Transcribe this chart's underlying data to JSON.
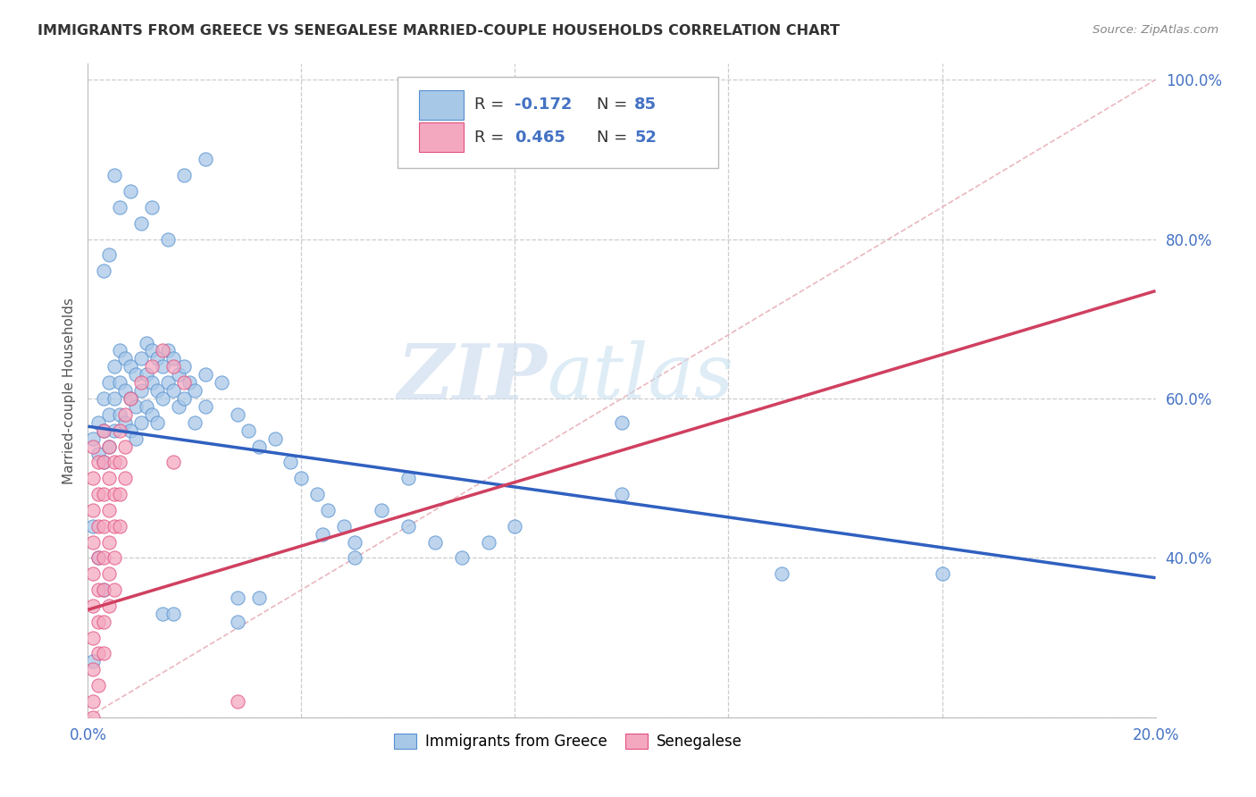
{
  "title": "IMMIGRANTS FROM GREECE VS SENEGALESE MARRIED-COUPLE HOUSEHOLDS CORRELATION CHART",
  "source": "Source: ZipAtlas.com",
  "xlabel_label": "Immigrants from Greece",
  "xlabel_label2": "Senegalese",
  "ylabel": "Married-couple Households",
  "xlim": [
    0.0,
    0.2
  ],
  "ylim": [
    0.2,
    1.02
  ],
  "xticks": [
    0.0,
    0.04,
    0.08,
    0.12,
    0.16,
    0.2
  ],
  "yticks": [
    0.2,
    0.4,
    0.6,
    0.8,
    1.0
  ],
  "color_blue": "#A8C8E8",
  "color_pink": "#F4A8C0",
  "color_blue_edge": "#5590D0",
  "color_pink_edge": "#E05080",
  "color_blue_line": "#3060C0",
  "color_pink_line": "#D04060",
  "color_diag_line": "#E8B0B8",
  "watermark_zip": "ZIP",
  "watermark_atlas": "atlas",
  "background_color": "#FFFFFF",
  "grid_color": "#CCCCCC",
  "title_color": "#333333",
  "axis_label_color": "#4472C4",
  "blue_scatter": [
    [
      0.001,
      0.55
    ],
    [
      0.002,
      0.57
    ],
    [
      0.002,
      0.53
    ],
    [
      0.003,
      0.6
    ],
    [
      0.003,
      0.56
    ],
    [
      0.003,
      0.52
    ],
    [
      0.004,
      0.62
    ],
    [
      0.004,
      0.58
    ],
    [
      0.004,
      0.54
    ],
    [
      0.005,
      0.64
    ],
    [
      0.005,
      0.6
    ],
    [
      0.005,
      0.56
    ],
    [
      0.006,
      0.66
    ],
    [
      0.006,
      0.62
    ],
    [
      0.006,
      0.58
    ],
    [
      0.007,
      0.65
    ],
    [
      0.007,
      0.61
    ],
    [
      0.007,
      0.57
    ],
    [
      0.008,
      0.64
    ],
    [
      0.008,
      0.6
    ],
    [
      0.008,
      0.56
    ],
    [
      0.009,
      0.63
    ],
    [
      0.009,
      0.59
    ],
    [
      0.009,
      0.55
    ],
    [
      0.01,
      0.65
    ],
    [
      0.01,
      0.61
    ],
    [
      0.01,
      0.57
    ],
    [
      0.011,
      0.67
    ],
    [
      0.011,
      0.63
    ],
    [
      0.011,
      0.59
    ],
    [
      0.012,
      0.66
    ],
    [
      0.012,
      0.62
    ],
    [
      0.012,
      0.58
    ],
    [
      0.013,
      0.65
    ],
    [
      0.013,
      0.61
    ],
    [
      0.013,
      0.57
    ],
    [
      0.014,
      0.64
    ],
    [
      0.014,
      0.6
    ],
    [
      0.015,
      0.66
    ],
    [
      0.015,
      0.62
    ],
    [
      0.016,
      0.65
    ],
    [
      0.016,
      0.61
    ],
    [
      0.017,
      0.63
    ],
    [
      0.017,
      0.59
    ],
    [
      0.018,
      0.64
    ],
    [
      0.018,
      0.6
    ],
    [
      0.019,
      0.62
    ],
    [
      0.02,
      0.61
    ],
    [
      0.02,
      0.57
    ],
    [
      0.022,
      0.63
    ],
    [
      0.022,
      0.59
    ],
    [
      0.025,
      0.62
    ],
    [
      0.028,
      0.58
    ],
    [
      0.03,
      0.56
    ],
    [
      0.032,
      0.54
    ],
    [
      0.035,
      0.55
    ],
    [
      0.038,
      0.52
    ],
    [
      0.04,
      0.5
    ],
    [
      0.043,
      0.48
    ],
    [
      0.045,
      0.46
    ],
    [
      0.048,
      0.44
    ],
    [
      0.05,
      0.42
    ],
    [
      0.055,
      0.46
    ],
    [
      0.06,
      0.44
    ],
    [
      0.065,
      0.42
    ],
    [
      0.07,
      0.4
    ],
    [
      0.075,
      0.42
    ],
    [
      0.08,
      0.44
    ],
    [
      0.005,
      0.88
    ],
    [
      0.006,
      0.84
    ],
    [
      0.008,
      0.86
    ],
    [
      0.01,
      0.82
    ],
    [
      0.012,
      0.84
    ],
    [
      0.015,
      0.8
    ],
    [
      0.018,
      0.88
    ],
    [
      0.022,
      0.9
    ],
    [
      0.003,
      0.76
    ],
    [
      0.004,
      0.78
    ],
    [
      0.001,
      0.44
    ],
    [
      0.002,
      0.4
    ],
    [
      0.003,
      0.36
    ],
    [
      0.001,
      0.27
    ],
    [
      0.06,
      0.5
    ],
    [
      0.1,
      0.48
    ],
    [
      0.13,
      0.38
    ],
    [
      0.16,
      0.38
    ],
    [
      0.044,
      0.43
    ],
    [
      0.05,
      0.4
    ],
    [
      0.028,
      0.35
    ],
    [
      0.028,
      0.32
    ],
    [
      0.032,
      0.35
    ],
    [
      0.014,
      0.33
    ],
    [
      0.016,
      0.33
    ],
    [
      0.1,
      0.57
    ]
  ],
  "pink_scatter": [
    [
      0.001,
      0.54
    ],
    [
      0.001,
      0.5
    ],
    [
      0.001,
      0.46
    ],
    [
      0.001,
      0.42
    ],
    [
      0.001,
      0.38
    ],
    [
      0.001,
      0.34
    ],
    [
      0.001,
      0.3
    ],
    [
      0.001,
      0.26
    ],
    [
      0.001,
      0.22
    ],
    [
      0.002,
      0.52
    ],
    [
      0.002,
      0.48
    ],
    [
      0.002,
      0.44
    ],
    [
      0.002,
      0.4
    ],
    [
      0.002,
      0.36
    ],
    [
      0.002,
      0.32
    ],
    [
      0.002,
      0.28
    ],
    [
      0.002,
      0.24
    ],
    [
      0.003,
      0.56
    ],
    [
      0.003,
      0.52
    ],
    [
      0.003,
      0.48
    ],
    [
      0.003,
      0.44
    ],
    [
      0.003,
      0.4
    ],
    [
      0.003,
      0.36
    ],
    [
      0.003,
      0.32
    ],
    [
      0.003,
      0.28
    ],
    [
      0.004,
      0.54
    ],
    [
      0.004,
      0.5
    ],
    [
      0.004,
      0.46
    ],
    [
      0.004,
      0.42
    ],
    [
      0.004,
      0.38
    ],
    [
      0.004,
      0.34
    ],
    [
      0.005,
      0.52
    ],
    [
      0.005,
      0.48
    ],
    [
      0.005,
      0.44
    ],
    [
      0.005,
      0.4
    ],
    [
      0.005,
      0.36
    ],
    [
      0.006,
      0.56
    ],
    [
      0.006,
      0.52
    ],
    [
      0.006,
      0.48
    ],
    [
      0.006,
      0.44
    ],
    [
      0.007,
      0.58
    ],
    [
      0.007,
      0.54
    ],
    [
      0.007,
      0.5
    ],
    [
      0.008,
      0.6
    ],
    [
      0.01,
      0.62
    ],
    [
      0.012,
      0.64
    ],
    [
      0.014,
      0.66
    ],
    [
      0.016,
      0.64
    ],
    [
      0.018,
      0.62
    ],
    [
      0.016,
      0.52
    ],
    [
      0.028,
      0.22
    ],
    [
      0.001,
      0.2
    ]
  ],
  "blue_line_x": [
    0.0,
    0.2
  ],
  "blue_line_y": [
    0.565,
    0.375
  ],
  "pink_line_x": [
    0.0,
    0.2
  ],
  "pink_line_y": [
    0.335,
    0.735
  ],
  "diag_line_x": [
    0.0,
    0.2
  ],
  "diag_line_y": [
    0.2,
    1.0
  ]
}
